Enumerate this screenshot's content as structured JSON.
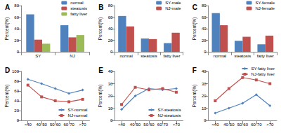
{
  "chart_data": [
    {
      "type": "bar",
      "title": "A",
      "ylabel": "Percent(%)",
      "categories": [
        "SY",
        "NJ"
      ],
      "series": [
        {
          "name": "normal",
          "color": "#4F81BD",
          "values": [
            65,
            46
          ]
        },
        {
          "name": "steatosis",
          "color": "#C0504D",
          "values": [
            21,
            25
          ]
        },
        {
          "name": "fatty liver",
          "color": "#9BBB59",
          "values": [
            14,
            29
          ]
        }
      ],
      "ylim": [
        0,
        80
      ],
      "yticks": [
        0,
        20,
        40,
        60,
        80
      ],
      "grid": false,
      "legend": "top-right"
    },
    {
      "type": "bar",
      "title": "B",
      "ylabel": "Percent(%)",
      "categories": [
        "normal",
        "steatosis",
        "fatty liver"
      ],
      "series": [
        {
          "name": "SY-male",
          "color": "#4F81BD",
          "values": [
            62,
            23,
            15
          ]
        },
        {
          "name": "NJ-male",
          "color": "#C0504D",
          "values": [
            44,
            22,
            33
          ]
        }
      ],
      "ylim": [
        0,
        80
      ],
      "yticks": [
        0,
        20,
        40,
        60,
        80
      ],
      "grid": false,
      "legend": "top-right"
    },
    {
      "type": "bar",
      "title": "C",
      "ylabel": "Percent(%)",
      "categories": [
        "normal",
        "steatosis",
        "fatty liver"
      ],
      "series": [
        {
          "name": "SY-female",
          "color": "#4F81BD",
          "values": [
            67,
            19,
            13
          ]
        },
        {
          "name": "NJ-female",
          "color": "#C0504D",
          "values": [
            46,
            26,
            28
          ]
        }
      ],
      "ylim": [
        0,
        80
      ],
      "yticks": [
        0,
        20,
        40,
        60,
        80
      ],
      "grid": false,
      "legend": "top-right"
    },
    {
      "type": "line",
      "title": "D",
      "ylabel": "Percent(%)",
      "categories": [
        "<40",
        "40-50",
        "50-60",
        "60-70",
        ">70"
      ],
      "series": [
        {
          "name": "SY-normal",
          "color": "#4F81BD",
          "marker": "diamond",
          "values": [
            84,
            75,
            65,
            55,
            62
          ]
        },
        {
          "name": "NJ-normal",
          "color": "#C0504D",
          "marker": "square",
          "values": [
            72,
            48,
            40,
            38,
            43
          ]
        }
      ],
      "ylim": [
        0,
        100
      ],
      "yticks": [
        0,
        20,
        40,
        60,
        80,
        100
      ],
      "grid": false,
      "legend": "bottom-right"
    },
    {
      "type": "line",
      "title": "E",
      "ylabel": "Percent(%)",
      "categories": [
        "<40",
        "40-50",
        "50-60",
        "60-70",
        ">70"
      ],
      "series": [
        {
          "name": "SY-steatosis",
          "color": "#4F81BD",
          "marker": "diamond",
          "values": [
            9,
            20,
            26,
            25,
            26
          ]
        },
        {
          "name": "NJ-steatosis",
          "color": "#C0504D",
          "marker": "square",
          "values": [
            13,
            27,
            25,
            26,
            23
          ]
        }
      ],
      "ylim": [
        0,
        40
      ],
      "yticks": [
        0,
        10,
        20,
        30,
        40
      ],
      "grid": false,
      "legend": "bottom-right"
    },
    {
      "type": "line",
      "title": "F",
      "ylabel": "Percent(%)",
      "categories": [
        "<40",
        "40-50",
        "50-60",
        "60-70",
        ">70"
      ],
      "series": [
        {
          "name": "SY-fatty liver",
          "color": "#4F81BD",
          "marker": "diamond",
          "values": [
            6,
            10,
            14,
            21,
            12
          ]
        },
        {
          "name": "NJ-fatty liver",
          "color": "#C0504D",
          "marker": "square",
          "values": [
            16,
            26,
            35,
            33,
            30
          ]
        }
      ],
      "ylim": [
        0,
        40
      ],
      "yticks": [
        0,
        10,
        20,
        30,
        40
      ],
      "grid": false,
      "legend": "top-right"
    }
  ]
}
